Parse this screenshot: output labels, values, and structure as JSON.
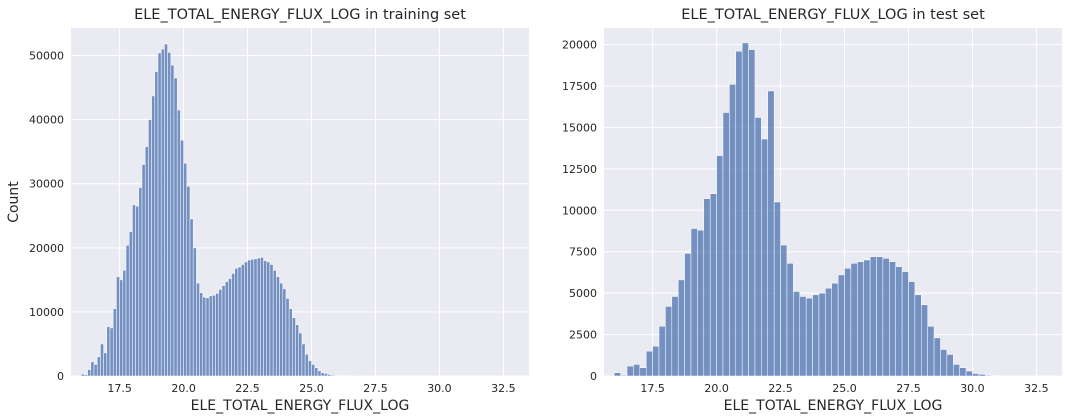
{
  "colors": {
    "panel_bg": "#eaeaf2",
    "grid": "#ffffff",
    "bar_fill": "#4c72b0",
    "bar_stroke": "#ffffff"
  },
  "chart_data": [
    {
      "type": "bar",
      "title": "ELE_TOTAL_ENERGY_FLUX_LOG in training set",
      "xlabel": "ELE_TOTAL_ENERGY_FLUX_LOG",
      "ylabel": "Count",
      "xlim": [
        15.6,
        33.5
      ],
      "ylim": [
        0,
        54300
      ],
      "xticks": [
        17.5,
        20.0,
        22.5,
        25.0,
        27.5,
        30.0,
        32.5
      ],
      "xtick_labels": [
        "17.5",
        "20.0",
        "22.5",
        "25.0",
        "27.5",
        "30.0",
        "32.5"
      ],
      "yticks": [
        0,
        10000,
        20000,
        30000,
        40000,
        50000
      ],
      "ytick_labels": [
        "0",
        "10000",
        "20000",
        "30000",
        "40000",
        "50000"
      ],
      "grid": true,
      "bin_start": 16.0,
      "bin_width": 0.125,
      "values": [
        300,
        200,
        1000,
        2200,
        1800,
        3000,
        5000,
        3600,
        7700,
        7500,
        10500,
        15500,
        15000,
        16500,
        20400,
        22500,
        26700,
        26500,
        29400,
        33000,
        35800,
        40000,
        43700,
        47500,
        50400,
        51000,
        51800,
        50500,
        48500,
        46500,
        41500,
        36800,
        33200,
        29600,
        24500,
        20000,
        14500,
        13000,
        12300,
        12200,
        12500,
        12600,
        12900,
        13500,
        14100,
        14700,
        15200,
        16000,
        16800,
        17000,
        17400,
        17800,
        18100,
        18200,
        18300,
        18400,
        18500,
        18000,
        17800,
        17400,
        16500,
        15500,
        14500,
        13600,
        12100,
        10500,
        9100,
        8000,
        6700,
        5000,
        3400,
        2400,
        1800,
        1300,
        800,
        500,
        400,
        250,
        150,
        100,
        80,
        60,
        50,
        40,
        30,
        25,
        20,
        15,
        10,
        10,
        8,
        6,
        5,
        5,
        4,
        3,
        3,
        2,
        2,
        1,
        1,
        1,
        1,
        1,
        1,
        1,
        1,
        1,
        1,
        1,
        1,
        1,
        1,
        1
      ]
    },
    {
      "type": "bar",
      "title": "ELE_TOTAL_ENERGY_FLUX_LOG in test set",
      "xlabel": "ELE_TOTAL_ENERGY_FLUX_LOG",
      "ylabel": "",
      "xlim": [
        15.6,
        33.5
      ],
      "ylim": [
        0,
        21000
      ],
      "xticks": [
        17.5,
        20.0,
        22.5,
        25.0,
        27.5,
        30.0,
        32.5
      ],
      "xtick_labels": [
        "17.5",
        "20.0",
        "22.5",
        "25.0",
        "27.5",
        "30.0",
        "32.5"
      ],
      "yticks": [
        0,
        2500,
        5000,
        7500,
        10000,
        12500,
        15000,
        17500,
        20000
      ],
      "ytick_labels": [
        "0",
        "2500",
        "5000",
        "7500",
        "10000",
        "12500",
        "15000",
        "17500",
        "20000"
      ],
      "grid": true,
      "bin_start": 16.0,
      "bin_width": 0.25,
      "values": [
        200,
        50,
        600,
        700,
        500,
        1500,
        1800,
        3000,
        4200,
        4800,
        5800,
        7400,
        8900,
        8800,
        10700,
        11000,
        13300,
        15900,
        17600,
        19600,
        20100,
        19700,
        15600,
        14300,
        17200,
        10500,
        7900,
        6800,
        5100,
        4800,
        4700,
        4900,
        5000,
        5300,
        5600,
        6100,
        6500,
        6800,
        6900,
        7000,
        7200,
        7200,
        7100,
        6900,
        6600,
        6300,
        5700,
        4900,
        4300,
        3000,
        2300,
        1600,
        1300,
        700,
        500,
        300,
        150,
        100,
        50,
        30,
        15,
        10,
        5,
        5,
        3,
        2,
        2,
        1,
        1,
        1
      ]
    }
  ]
}
